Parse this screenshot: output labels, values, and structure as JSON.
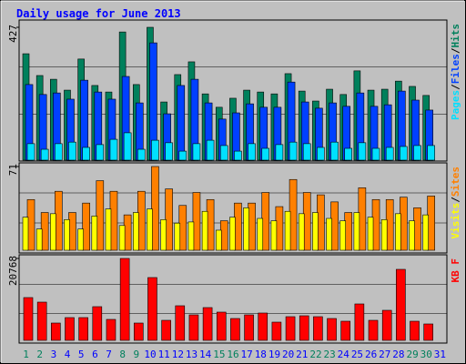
{
  "title": "Daily usage for June 2013",
  "legend_separator": "/",
  "chart_data": [
    {
      "type": "bar",
      "ylim": [
        0,
        427
      ],
      "yticks": [
        427
      ],
      "series": [
        {
          "name": "Hits",
          "color": "#00805c",
          "values": [
            342,
            272,
            260,
            225,
            325,
            240,
            219,
            412,
            243,
            427,
            187,
            275,
            316,
            213,
            170,
            199,
            225,
            219,
            213,
            278,
            222,
            190,
            228,
            211,
            287,
            225,
            228,
            254,
            237,
            208,
            null
          ]
        },
        {
          "name": "Files",
          "color": "#0040ff",
          "values": [
            243,
            211,
            216,
            196,
            257,
            219,
            196,
            269,
            184,
            377,
            149,
            240,
            260,
            184,
            132,
            152,
            181,
            170,
            170,
            251,
            187,
            167,
            184,
            173,
            216,
            173,
            178,
            222,
            193,
            161,
            null
          ]
        },
        {
          "name": "Pages",
          "color": "#00e0ff",
          "values": [
            53,
            35,
            53,
            58,
            41,
            50,
            67,
            88,
            35,
            64,
            56,
            29,
            53,
            64,
            47,
            29,
            53,
            38,
            50,
            58,
            53,
            41,
            58,
            38,
            56,
            38,
            41,
            44,
            47,
            47,
            null
          ]
        }
      ]
    },
    {
      "type": "bar",
      "ylim": [
        0,
        71
      ],
      "yticks": [
        71
      ],
      "series": [
        {
          "name": "Sites",
          "color": "#ff8000",
          "values": [
            43,
            32,
            50,
            32,
            40,
            59,
            50,
            30,
            50,
            71,
            52,
            38,
            49,
            43,
            25,
            40,
            40,
            49,
            37,
            60,
            49,
            47,
            41,
            32,
            53,
            43,
            43,
            45,
            36,
            46,
            null
          ]
        },
        {
          "name": "Visits",
          "color": "#ffff00",
          "values": [
            28,
            18,
            31,
            26,
            18,
            29,
            35,
            21,
            32,
            35,
            26,
            23,
            24,
            33,
            17,
            28,
            36,
            27,
            25,
            33,
            31,
            32,
            27,
            25,
            32,
            28,
            26,
            31,
            25,
            30,
            null
          ]
        }
      ]
    },
    {
      "type": "bar",
      "ylim": [
        0,
        20768
      ],
      "yticks": [
        20768
      ],
      "categories": [
        "1",
        "2",
        "3",
        "4",
        "5",
        "6",
        "7",
        "8",
        "9",
        "10",
        "11",
        "12",
        "13",
        "14",
        "15",
        "16",
        "17",
        "18",
        "19",
        "20",
        "21",
        "22",
        "23",
        "24",
        "25",
        "26",
        "27",
        "28",
        "29",
        "30",
        "31"
      ],
      "category_colors": [
        "#00805c",
        "#00805c",
        "#0000ff",
        "#0000ff",
        "#0000ff",
        "#0000ff",
        "#0000ff",
        "#00805c",
        "#00805c",
        "#0000ff",
        "#0000ff",
        "#0000ff",
        "#0000ff",
        "#0000ff",
        "#00805c",
        "#00805c",
        "#0000ff",
        "#0000ff",
        "#0000ff",
        "#0000ff",
        "#0000ff",
        "#00805c",
        "#00805c",
        "#0000ff",
        "#0000ff",
        "#0000ff",
        "#0000ff",
        "#0000ff",
        "#00805c",
        "#00805c",
        "#0000ff"
      ],
      "series": [
        {
          "name": "KB F",
          "color": "#ff0000",
          "values": [
            10846,
            9692,
            4384,
            5769,
            5769,
            8538,
            5307,
            20768,
            4384,
            15922,
            5077,
            8769,
            6461,
            8307,
            7153,
            5538,
            6461,
            6923,
            4615,
            6000,
            6231,
            6000,
            5538,
            4846,
            9230,
            5077,
            7615,
            18000,
            4846,
            4154,
            null
          ]
        }
      ]
    }
  ]
}
